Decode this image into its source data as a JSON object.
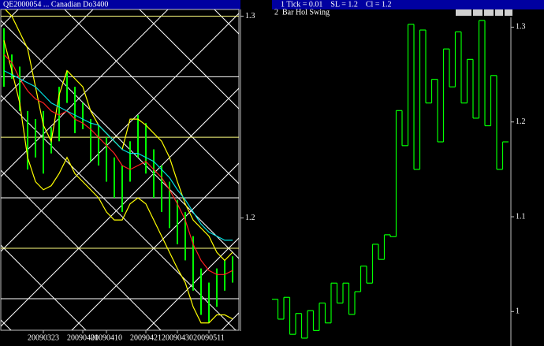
{
  "chart_data": [
    {
      "type": "bar-lines",
      "title": "QE2000054 ... Canadian Do3400",
      "categories": [
        null,
        null,
        null,
        null,
        null,
        "20090323",
        null,
        null,
        null,
        null,
        "20090401",
        null,
        null,
        "20090410",
        null,
        null,
        null,
        null,
        "20090421",
        null,
        null,
        null,
        "20090430",
        null,
        null,
        null,
        "20090511",
        null,
        null,
        null
      ],
      "bars": {
        "color": "#00ff00",
        "high": [
          1.294,
          1.281,
          1.275,
          1.253,
          1.249,
          1.253,
          1.245,
          1.265,
          1.273,
          1.265,
          1.257,
          1.249,
          1.246,
          1.24,
          1.23,
          1.226,
          1.238,
          1.251,
          1.247,
          1.234,
          1.226,
          1.218,
          1.209,
          1.203,
          1.191,
          1.175,
          1.168,
          1.175,
          1.179,
          1.181
        ],
        "low": [
          1.265,
          1.269,
          1.253,
          1.224,
          1.23,
          1.222,
          1.232,
          1.238,
          1.257,
          1.242,
          1.244,
          1.228,
          1.226,
          1.218,
          1.21,
          1.203,
          1.218,
          1.23,
          1.222,
          1.21,
          1.203,
          1.195,
          1.187,
          1.179,
          1.164,
          1.152,
          1.148,
          1.156,
          1.164,
          1.168
        ]
      },
      "series": [
        {
          "color": "#ffff00",
          "values": [
            1.304,
            1.3,
            1.292,
            1.284,
            1.265,
            1.246,
            1.238,
            1.261,
            1.273,
            1.269,
            1.265,
            1.253,
            1.246,
            1.242,
            1.238,
            1.234,
            1.249,
            1.249,
            1.246,
            1.242,
            1.238,
            1.23,
            1.218,
            1.207,
            1.199,
            1.195,
            1.191,
            1.183,
            1.179,
            1.183
          ]
        },
        {
          "color": "#ffff00",
          "values": [
            1.288,
            1.273,
            1.257,
            1.23,
            1.218,
            1.214,
            1.216,
            1.222,
            1.23,
            1.222,
            1.218,
            1.214,
            1.21,
            1.203,
            1.199,
            1.199,
            1.207,
            1.21,
            1.207,
            1.199,
            1.191,
            1.183,
            1.175,
            1.168,
            1.156,
            1.148,
            1.148,
            1.152,
            1.152,
            1.15
          ]
        },
        {
          "color": "#ff2020",
          "values": [
            1.281,
            1.277,
            1.269,
            1.263,
            1.259,
            1.257,
            1.253,
            1.251,
            1.253,
            1.249,
            1.247,
            1.244,
            1.24,
            1.236,
            1.232,
            1.226,
            1.224,
            1.226,
            1.228,
            1.224,
            1.22,
            1.214,
            1.207,
            1.199,
            1.187,
            1.179,
            1.174,
            1.172,
            1.172,
            1.174
          ]
        },
        {
          "color": "#00e0e0",
          "values": [
            1.273,
            1.271,
            1.269,
            1.267,
            1.265,
            1.261,
            1.257,
            1.255,
            1.253,
            1.251,
            1.249,
            1.247,
            1.246,
            1.242,
            1.238,
            1.234,
            1.232,
            1.232,
            1.23,
            1.228,
            1.224,
            1.22,
            1.214,
            1.209,
            1.203,
            1.197,
            1.193,
            1.191,
            1.189,
            1.189
          ]
        }
      ],
      "levels": {
        "values": [
          1.3,
          1.27,
          1.24,
          1.21,
          1.185,
          1.16
        ],
        "colors": [
          "#ffff80",
          "#ffffff",
          "#ffff80",
          "#ffffff",
          "#ffff80",
          "#ffffff"
        ]
      },
      "ylim": [
        1.144,
        1.308
      ],
      "yticks": [
        1.3,
        1.2
      ]
    },
    {
      "type": "step",
      "title": "1 Tick = 0.01    SL = 1.2    Cl = 1.2",
      "subtitle": "2  Bar Hol Swing",
      "color": "#00ff00",
      "values": [
        1.013,
        0.992,
        1.015,
        0.976,
        0.998,
        0.972,
        1.001,
        0.98,
        1.009,
        0.988,
        1.03,
        1.009,
        1.03,
        0.997,
        1.021,
        1.048,
        1.03,
        1.071,
        1.055,
        1.081,
        1.079,
        1.212,
        1.175,
        1.303,
        1.15,
        1.297,
        1.22,
        1.245,
        1.179,
        1.277,
        1.237,
        1.295,
        1.22,
        1.266,
        1.204,
        1.307,
        1.196,
        1.249,
        1.15,
        1.179
      ],
      "ylim": [
        0.967,
        1.317
      ],
      "yticks": [
        1.3,
        1.2,
        1.1,
        1
      ]
    }
  ]
}
